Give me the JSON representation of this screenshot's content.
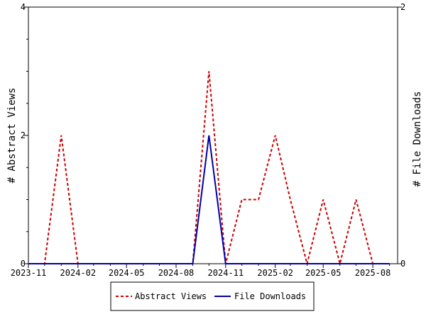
{
  "chart_data": {
    "type": "line",
    "xlabel": "",
    "ylabel_left": "# Abstract Views",
    "ylabel_right": "# File Downloads",
    "x_ticks": [
      "2023-11",
      "2024-02",
      "2024-05",
      "2024-08",
      "2024-11",
      "2025-02",
      "2025-05",
      "2025-08"
    ],
    "y_left_ticks": [
      "0",
      "2",
      "4"
    ],
    "y_right_ticks": [
      "0",
      "2"
    ],
    "ylim_left": [
      0,
      4
    ],
    "ylim_right": [
      0,
      2
    ],
    "grid": false,
    "legend_position": "bottom",
    "series": [
      {
        "name": "Abstract Views",
        "axis": "left",
        "color": "#cc0000",
        "style": "dashed",
        "points": [
          [
            "2023-11",
            0
          ],
          [
            "2023-12",
            0
          ],
          [
            "2024-01",
            2
          ],
          [
            "2024-02",
            0
          ],
          [
            "2024-03",
            0
          ],
          [
            "2024-04",
            0
          ],
          [
            "2024-05",
            0
          ],
          [
            "2024-06",
            0
          ],
          [
            "2024-07",
            0
          ],
          [
            "2024-08",
            0
          ],
          [
            "2024-09",
            0
          ],
          [
            "2024-10",
            3
          ],
          [
            "2024-11",
            0
          ],
          [
            "2024-12",
            1
          ],
          [
            "2025-01",
            1
          ],
          [
            "2025-02",
            2
          ],
          [
            "2025-03",
            1
          ],
          [
            "2025-04",
            0
          ],
          [
            "2025-05",
            1
          ],
          [
            "2025-06",
            0
          ],
          [
            "2025-07",
            1
          ],
          [
            "2025-08",
            0
          ],
          [
            "2025-09",
            0
          ]
        ]
      },
      {
        "name": "File Downloads",
        "axis": "right",
        "color": "#0000aa",
        "style": "solid",
        "points": [
          [
            "2023-11",
            0
          ],
          [
            "2023-12",
            0
          ],
          [
            "2024-01",
            0
          ],
          [
            "2024-02",
            0
          ],
          [
            "2024-03",
            0
          ],
          [
            "2024-04",
            0
          ],
          [
            "2024-05",
            0
          ],
          [
            "2024-06",
            0
          ],
          [
            "2024-07",
            0
          ],
          [
            "2024-08",
            0
          ],
          [
            "2024-09",
            0
          ],
          [
            "2024-10",
            1
          ],
          [
            "2024-11",
            0
          ],
          [
            "2024-12",
            0
          ],
          [
            "2025-01",
            0
          ],
          [
            "2025-02",
            0
          ],
          [
            "2025-03",
            0
          ],
          [
            "2025-04",
            0
          ],
          [
            "2025-05",
            0
          ],
          [
            "2025-06",
            0
          ],
          [
            "2025-07",
            0
          ],
          [
            "2025-08",
            0
          ],
          [
            "2025-09",
            0
          ]
        ]
      }
    ]
  }
}
